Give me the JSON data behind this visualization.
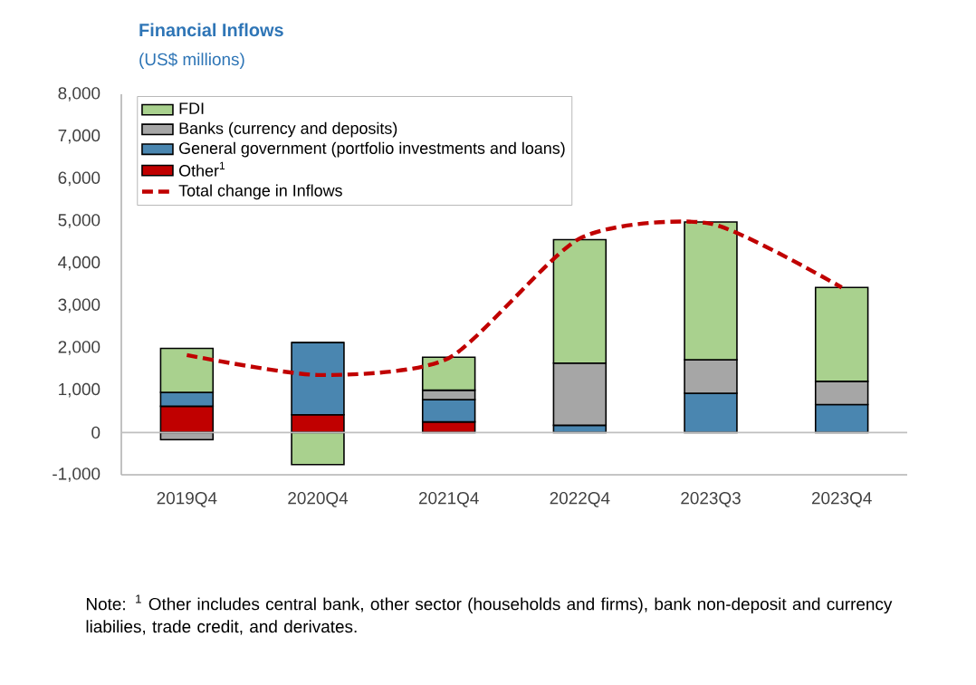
{
  "chart_data": {
    "type": "bar",
    "stacked": true,
    "title": "Financial Inflows",
    "subtitle": "(US$ millions)",
    "categories": [
      "2019Q4",
      "2020Q4",
      "2021Q4",
      "2022Q4",
      "2023Q3",
      "2023Q4"
    ],
    "series": [
      {
        "name": "Other$^{1}$",
        "color": "#c00000",
        "values": [
          620,
          420,
          250,
          null,
          null,
          null
        ]
      },
      {
        "name": "General government (portfolio investments and loans)",
        "color": "#4a86b0",
        "values": [
          330,
          1710,
          530,
          170,
          930,
          660
        ]
      },
      {
        "name": "Banks (currency and deposits)",
        "color": "#a6a6a6",
        "values": [
          -170,
          0,
          220,
          1470,
          790,
          550
        ]
      },
      {
        "name": "FDI",
        "color": "#a9d18e",
        "values": [
          1040,
          -760,
          780,
          2920,
          3260,
          2220
        ]
      },
      {
        "name": "Total change in Inflows",
        "type": "line",
        "line_style": "dashed",
        "color": "#c00000",
        "values": [
          1830,
          1360,
          1760,
          4590,
          4940,
          3430
        ]
      }
    ],
    "ylim": [
      -1000,
      8000
    ],
    "yticks": [
      {
        "value": -1000,
        "label": "-1,000"
      },
      0,
      {
        "value": 1000,
        "label": "1,000"
      },
      {
        "value": 2000,
        "label": "2,000"
      },
      {
        "value": 3000,
        "label": "3,000"
      },
      {
        "value": 4000,
        "label": "4,000"
      },
      {
        "value": 5000,
        "label": "5,000"
      },
      {
        "value": 6000,
        "label": "6,000"
      },
      {
        "value": 7000,
        "label": "7,000"
      },
      {
        "value": 8000,
        "label": "8,000"
      }
    ],
    "ref_lines": [
      {
        "axis": "y",
        "value": 0,
        "color": "#bfbfbf"
      }
    ],
    "legend": "top left",
    "annotations": [
      "Note: $^{1}$ Other includes central bank, other sector (households and firms), bank non-deposit and currency liabilies, trade credit, and derivates."
    ]
  }
}
